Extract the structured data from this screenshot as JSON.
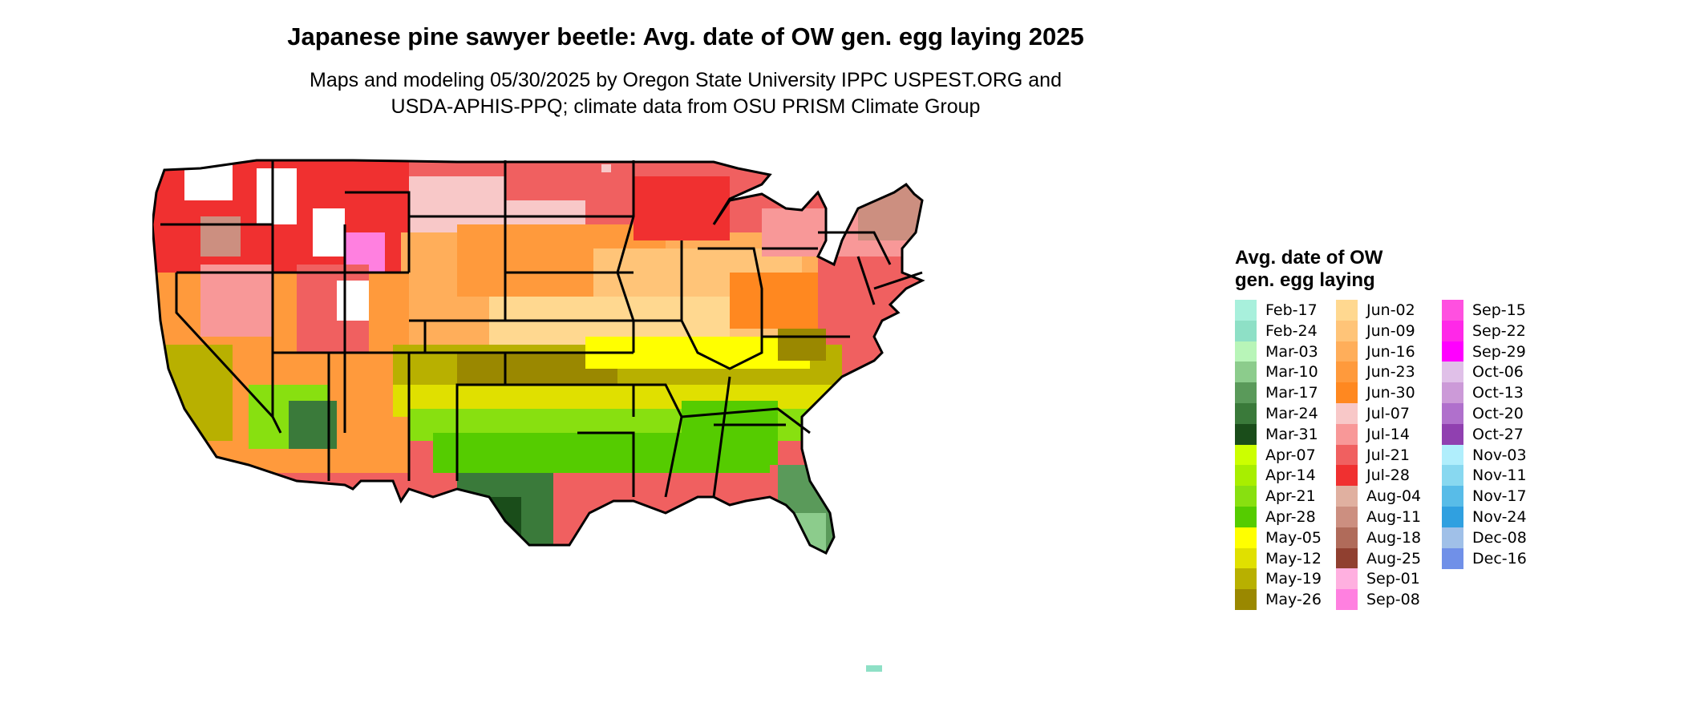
{
  "title": "Japanese pine sawyer beetle: Avg. date of OW gen. egg laying 2025",
  "subtitle_line1": "Maps and modeling 05/30/2025 by Oregon State University IPPC USPEST.ORG and",
  "subtitle_line2": "USDA-APHIS-PPQ; climate data from OSU PRISM Climate Group",
  "legend": {
    "title_line1": "Avg. date of OW",
    "title_line2": "gen. egg laying",
    "columns": [
      [
        {
          "label": "Feb-17",
          "color": "#a8f0dc"
        },
        {
          "label": "Feb-24",
          "color": "#8ee0c6"
        },
        {
          "label": "Mar-03",
          "color": "#b8f5b8"
        },
        {
          "label": "Mar-10",
          "color": "#8ccc8c"
        },
        {
          "label": "Mar-17",
          "color": "#5a9a5a"
        },
        {
          "label": "Mar-24",
          "color": "#3a7a3a"
        },
        {
          "label": "Mar-31",
          "color": "#1a4d1a"
        },
        {
          "label": "Apr-07",
          "color": "#ccff00"
        },
        {
          "label": "Apr-14",
          "color": "#a8ee00"
        },
        {
          "label": "Apr-21",
          "color": "#88e010"
        },
        {
          "label": "Apr-28",
          "color": "#55cc00"
        },
        {
          "label": "May-05",
          "color": "#ffff00"
        },
        {
          "label": "May-12",
          "color": "#e0e000"
        },
        {
          "label": "May-19",
          "color": "#b8b000"
        },
        {
          "label": "May-26",
          "color": "#9a8800"
        }
      ],
      [
        {
          "label": "Jun-02",
          "color": "#ffd890"
        },
        {
          "label": "Jun-09",
          "color": "#ffc478"
        },
        {
          "label": "Jun-16",
          "color": "#ffae5a"
        },
        {
          "label": "Jun-23",
          "color": "#ff9a3c"
        },
        {
          "label": "Jun-30",
          "color": "#ff8820"
        },
        {
          "label": "Jul-07",
          "color": "#f8c8c8"
        },
        {
          "label": "Jul-14",
          "color": "#f89898"
        },
        {
          "label": "Jul-21",
          "color": "#f06060"
        },
        {
          "label": "Jul-28",
          "color": "#f03030"
        },
        {
          "label": "Aug-04",
          "color": "#e0b0a0"
        },
        {
          "label": "Aug-11",
          "color": "#cc8f80"
        },
        {
          "label": "Aug-18",
          "color": "#b06b5a"
        },
        {
          "label": "Aug-25",
          "color": "#904030"
        },
        {
          "label": "Sep-01",
          "color": "#ffb0e0"
        },
        {
          "label": "Sep-08",
          "color": "#ff80e0"
        }
      ],
      [
        {
          "label": "Sep-15",
          "color": "#ff50e0"
        },
        {
          "label": "Sep-22",
          "color": "#ff28e8"
        },
        {
          "label": "Sep-29",
          "color": "#ff00ff"
        },
        {
          "label": "Oct-06",
          "color": "#e0c0e8"
        },
        {
          "label": "Oct-13",
          "color": "#cc9ad8"
        },
        {
          "label": "Oct-20",
          "color": "#b070cc"
        },
        {
          "label": "Oct-27",
          "color": "#9040b0"
        },
        {
          "label": "Nov-03",
          "color": "#b0eefc"
        },
        {
          "label": "Nov-11",
          "color": "#88d8f0"
        },
        {
          "label": "Nov-17",
          "color": "#58bce8"
        },
        {
          "label": "Nov-24",
          "color": "#30a0e0"
        },
        {
          "label": "Dec-08",
          "color": "#a0c0e8"
        },
        {
          "label": "Dec-16",
          "color": "#7090e8"
        }
      ]
    ]
  }
}
